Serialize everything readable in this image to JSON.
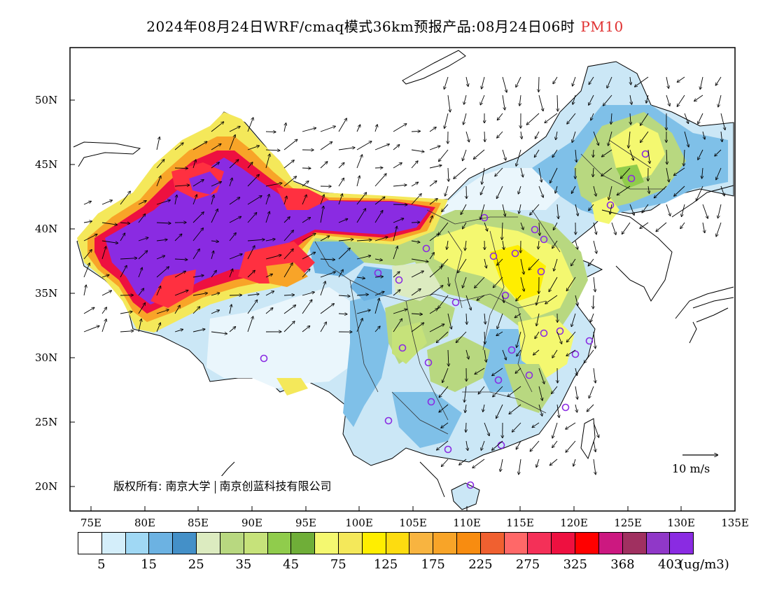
{
  "title": {
    "main": "2024年08月24日WRF/cmaq模式36km预报产品:08月24日06时",
    "pollutant": "PM10",
    "pollutant_color": "#e03030"
  },
  "axes": {
    "lat_labels": [
      "50N",
      "45N",
      "40N",
      "35N",
      "30N",
      "25N",
      "20N"
    ],
    "lon_labels": [
      "75E",
      "80E",
      "85E",
      "90E",
      "95E",
      "100E",
      "105E",
      "110E",
      "115E",
      "120E",
      "125E",
      "130E",
      "135E"
    ]
  },
  "copyright": {
    "prefix": "版权所有:",
    "org1": "南京大学",
    "org2": "南京创蓝科技有限公司"
  },
  "wind_reference": "10 m/s",
  "legend": {
    "colors": [
      "#ffffff",
      "#d4eefa",
      "#a0d8f4",
      "#6cb2e2",
      "#4490c8",
      "#dcebc0",
      "#b8d880",
      "#c6e27a",
      "#90cc4c",
      "#6fae38",
      "#f4f870",
      "#f4e85a",
      "#ffee00",
      "#fddc10",
      "#f8b440",
      "#f8a428",
      "#f88c10",
      "#f06030",
      "#ff6868",
      "#f43058",
      "#ee1040",
      "#ff0000",
      "#cc1880",
      "#a03060",
      "#9038c8",
      "#8a2be2"
    ],
    "labels": [
      "5",
      "15",
      "25",
      "35",
      "45",
      "75",
      "125",
      "175",
      "225",
      "275",
      "325",
      "368",
      "403"
    ],
    "unit": "(ug/m3)"
  }
}
